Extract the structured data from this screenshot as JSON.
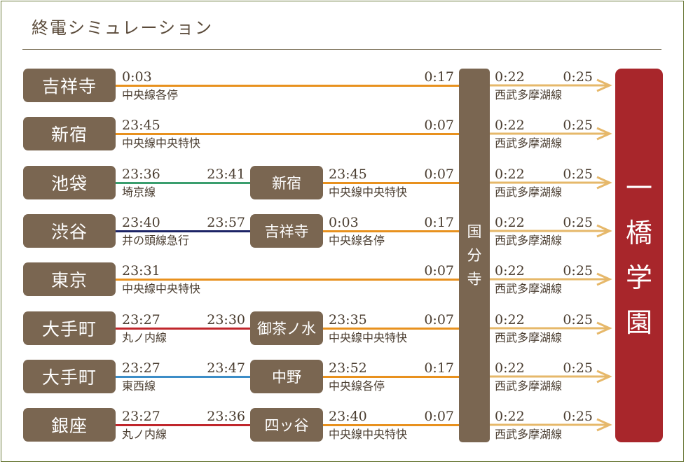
{
  "title": "終電シミュレーション",
  "transfer_station": [
    "国",
    "分",
    "寺"
  ],
  "destination": [
    "一",
    "橋",
    "学",
    "園"
  ],
  "colors": {
    "chuo": "#e8911e",
    "seibu_arrow": "#e6b86a",
    "saikyo": "#3a9e6e",
    "inokashira": "#1c2466",
    "marunouchi": "#c0262c",
    "tozai": "#3c8dc7",
    "box": "#7a6651",
    "destination": "#a8262b"
  },
  "rows": [
    {
      "origin": "吉祥寺",
      "dep": "0:03",
      "line1": "中央線各停",
      "color1": "#e8911e",
      "arr_k": "0:17",
      "seibu_dep": "0:22",
      "seibu_arr": "0:25",
      "seibu_line": "西武多摩湖線"
    },
    {
      "origin": "新宿",
      "dep": "23:45",
      "line1": "中央線中央特快",
      "color1": "#e8911e",
      "arr_k": "0:07",
      "seibu_dep": "0:22",
      "seibu_arr": "0:25",
      "seibu_line": "西武多摩湖線"
    },
    {
      "origin": "池袋",
      "dep": "23:36",
      "line1": "埼京線",
      "color1": "#3a9e6e",
      "arr1": "23:41",
      "transfer": "新宿",
      "dep2": "23:45",
      "line2": "中央線中央特快",
      "arr_k": "0:07",
      "seibu_dep": "0:22",
      "seibu_arr": "0:25",
      "seibu_line": "西武多摩湖線"
    },
    {
      "origin": "渋谷",
      "dep": "23:40",
      "line1": "井の頭線急行",
      "color1": "#1c2466",
      "arr1": "23:57",
      "transfer": "吉祥寺",
      "dep2": "0:03",
      "line2": "中央線各停",
      "arr_k": "0:17",
      "seibu_dep": "0:22",
      "seibu_arr": "0:25",
      "seibu_line": "西武多摩湖線"
    },
    {
      "origin": "東京",
      "dep": "23:31",
      "line1": "中央線中央特快",
      "color1": "#e8911e",
      "arr_k": "0:07",
      "seibu_dep": "0:22",
      "seibu_arr": "0:25",
      "seibu_line": "西武多摩湖線"
    },
    {
      "origin": "大手町",
      "dep": "23:27",
      "line1": "丸ノ内線",
      "color1": "#c0262c",
      "arr1": "23:30",
      "transfer": "御茶ノ水",
      "dep2": "23:35",
      "line2": "中央線中央特快",
      "arr_k": "0:07",
      "seibu_dep": "0:22",
      "seibu_arr": "0:25",
      "seibu_line": "西武多摩湖線"
    },
    {
      "origin": "大手町",
      "dep": "23:27",
      "line1": "東西線",
      "color1": "#3c8dc7",
      "arr1": "23:47",
      "transfer": "中野",
      "dep2": "23:52",
      "line2": "中央線各停",
      "arr_k": "0:17",
      "seibu_dep": "0:22",
      "seibu_arr": "0:25",
      "seibu_line": "西武多摩湖線"
    },
    {
      "origin": "銀座",
      "dep": "23:27",
      "line1": "丸ノ内線",
      "color1": "#c0262c",
      "arr1": "23:36",
      "transfer": "四ッ谷",
      "dep2": "23:40",
      "line2": "中央線中央特快",
      "arr_k": "0:07",
      "seibu_dep": "0:22",
      "seibu_arr": "0:25",
      "seibu_line": "西武多摩湖線"
    }
  ]
}
